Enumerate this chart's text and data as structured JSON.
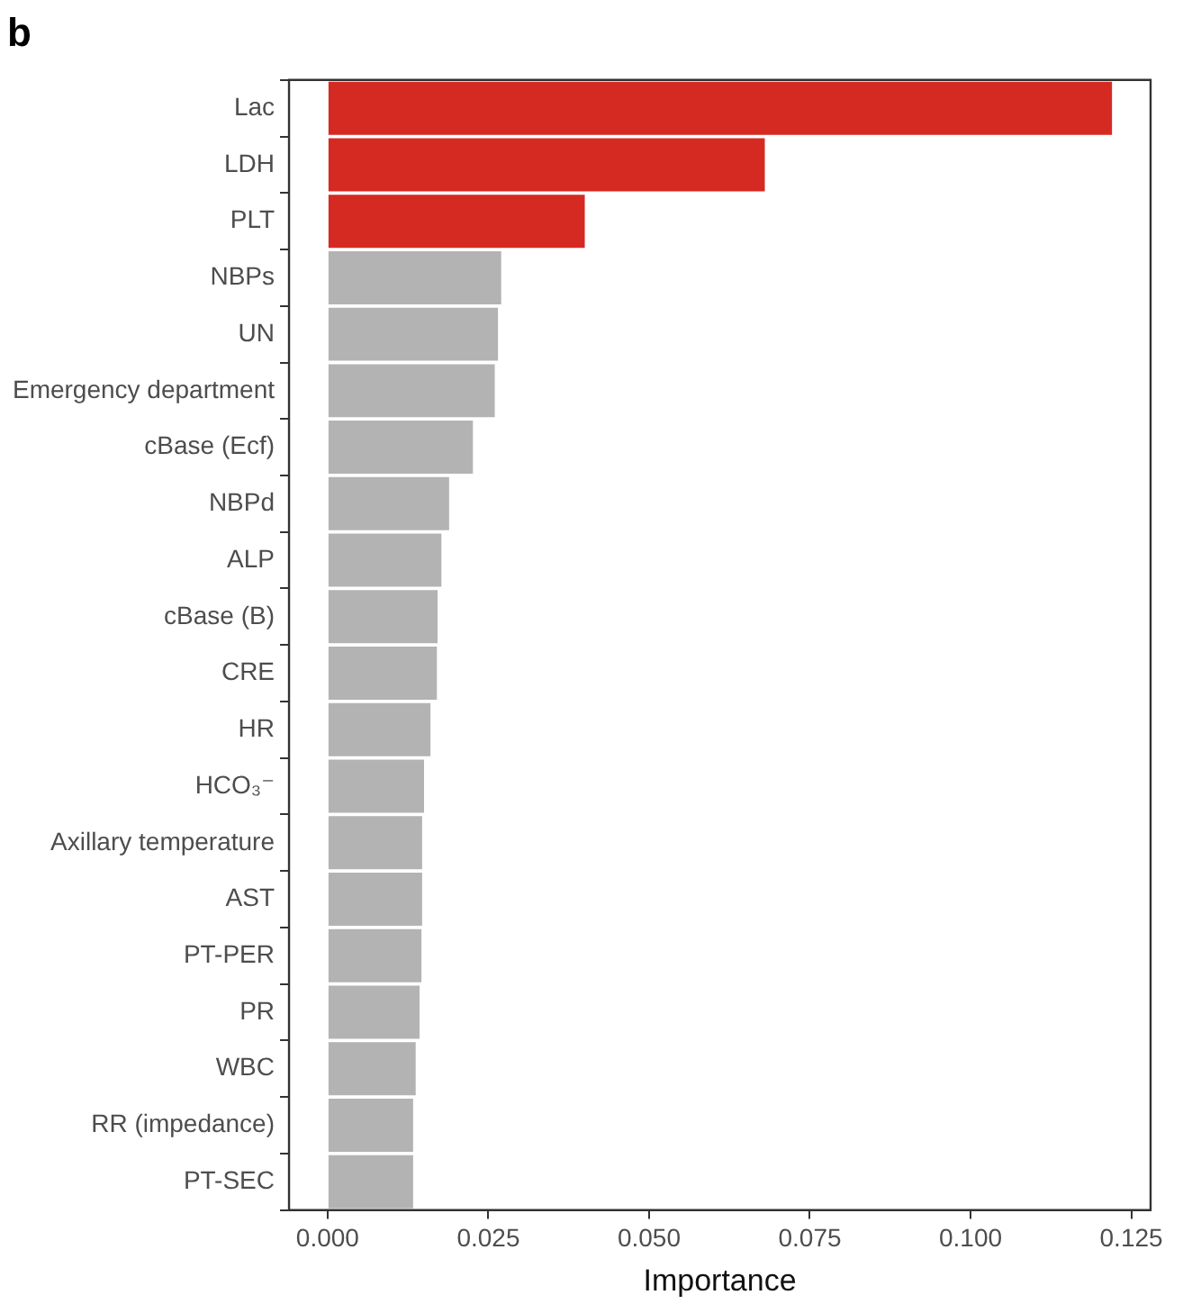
{
  "chart_data": {
    "type": "bar",
    "orientation": "horizontal",
    "title": "b",
    "xlabel": "Importance",
    "categories": [
      "Lac",
      "LDH",
      "PLT",
      "NBPs",
      "UN",
      "Emergency department",
      "cBase (Ecf)",
      "NBPd",
      "ALP",
      "cBase (B)",
      "CRE",
      "HR",
      "HCO₃⁻",
      "Axillary temperature",
      "AST",
      "PT-PER",
      "PR",
      "WBC",
      "RR (impedance)",
      "PT-SEC"
    ],
    "values": [
      0.122,
      0.068,
      0.04,
      0.027,
      0.0265,
      0.026,
      0.0226,
      0.0189,
      0.0177,
      0.0171,
      0.017,
      0.016,
      0.015,
      0.0147,
      0.0147,
      0.0146,
      0.0143,
      0.0137,
      0.0133,
      0.0133
    ],
    "colors": [
      "#d42a22",
      "#d42a22",
      "#d42a22",
      "#b3b3b3",
      "#b3b3b3",
      "#b3b3b3",
      "#b3b3b3",
      "#b3b3b3",
      "#b3b3b3",
      "#b3b3b3",
      "#b3b3b3",
      "#b3b3b3",
      "#b3b3b3",
      "#b3b3b3",
      "#b3b3b3",
      "#b3b3b3",
      "#b3b3b3",
      "#b3b3b3",
      "#b3b3b3",
      "#b3b3b3"
    ],
    "xlim": [
      -0.006,
      0.128
    ],
    "xticks": [
      {
        "value": 0,
        "label": "0.000"
      },
      {
        "value": 0.025,
        "label": "0.025"
      },
      {
        "value": 0.05,
        "label": "0.050"
      },
      {
        "value": 0.075,
        "label": "0.075"
      },
      {
        "value": 0.1,
        "label": "0.100"
      },
      {
        "value": 0.125,
        "label": "0.125"
      }
    ],
    "grid": false,
    "legend": false
  }
}
